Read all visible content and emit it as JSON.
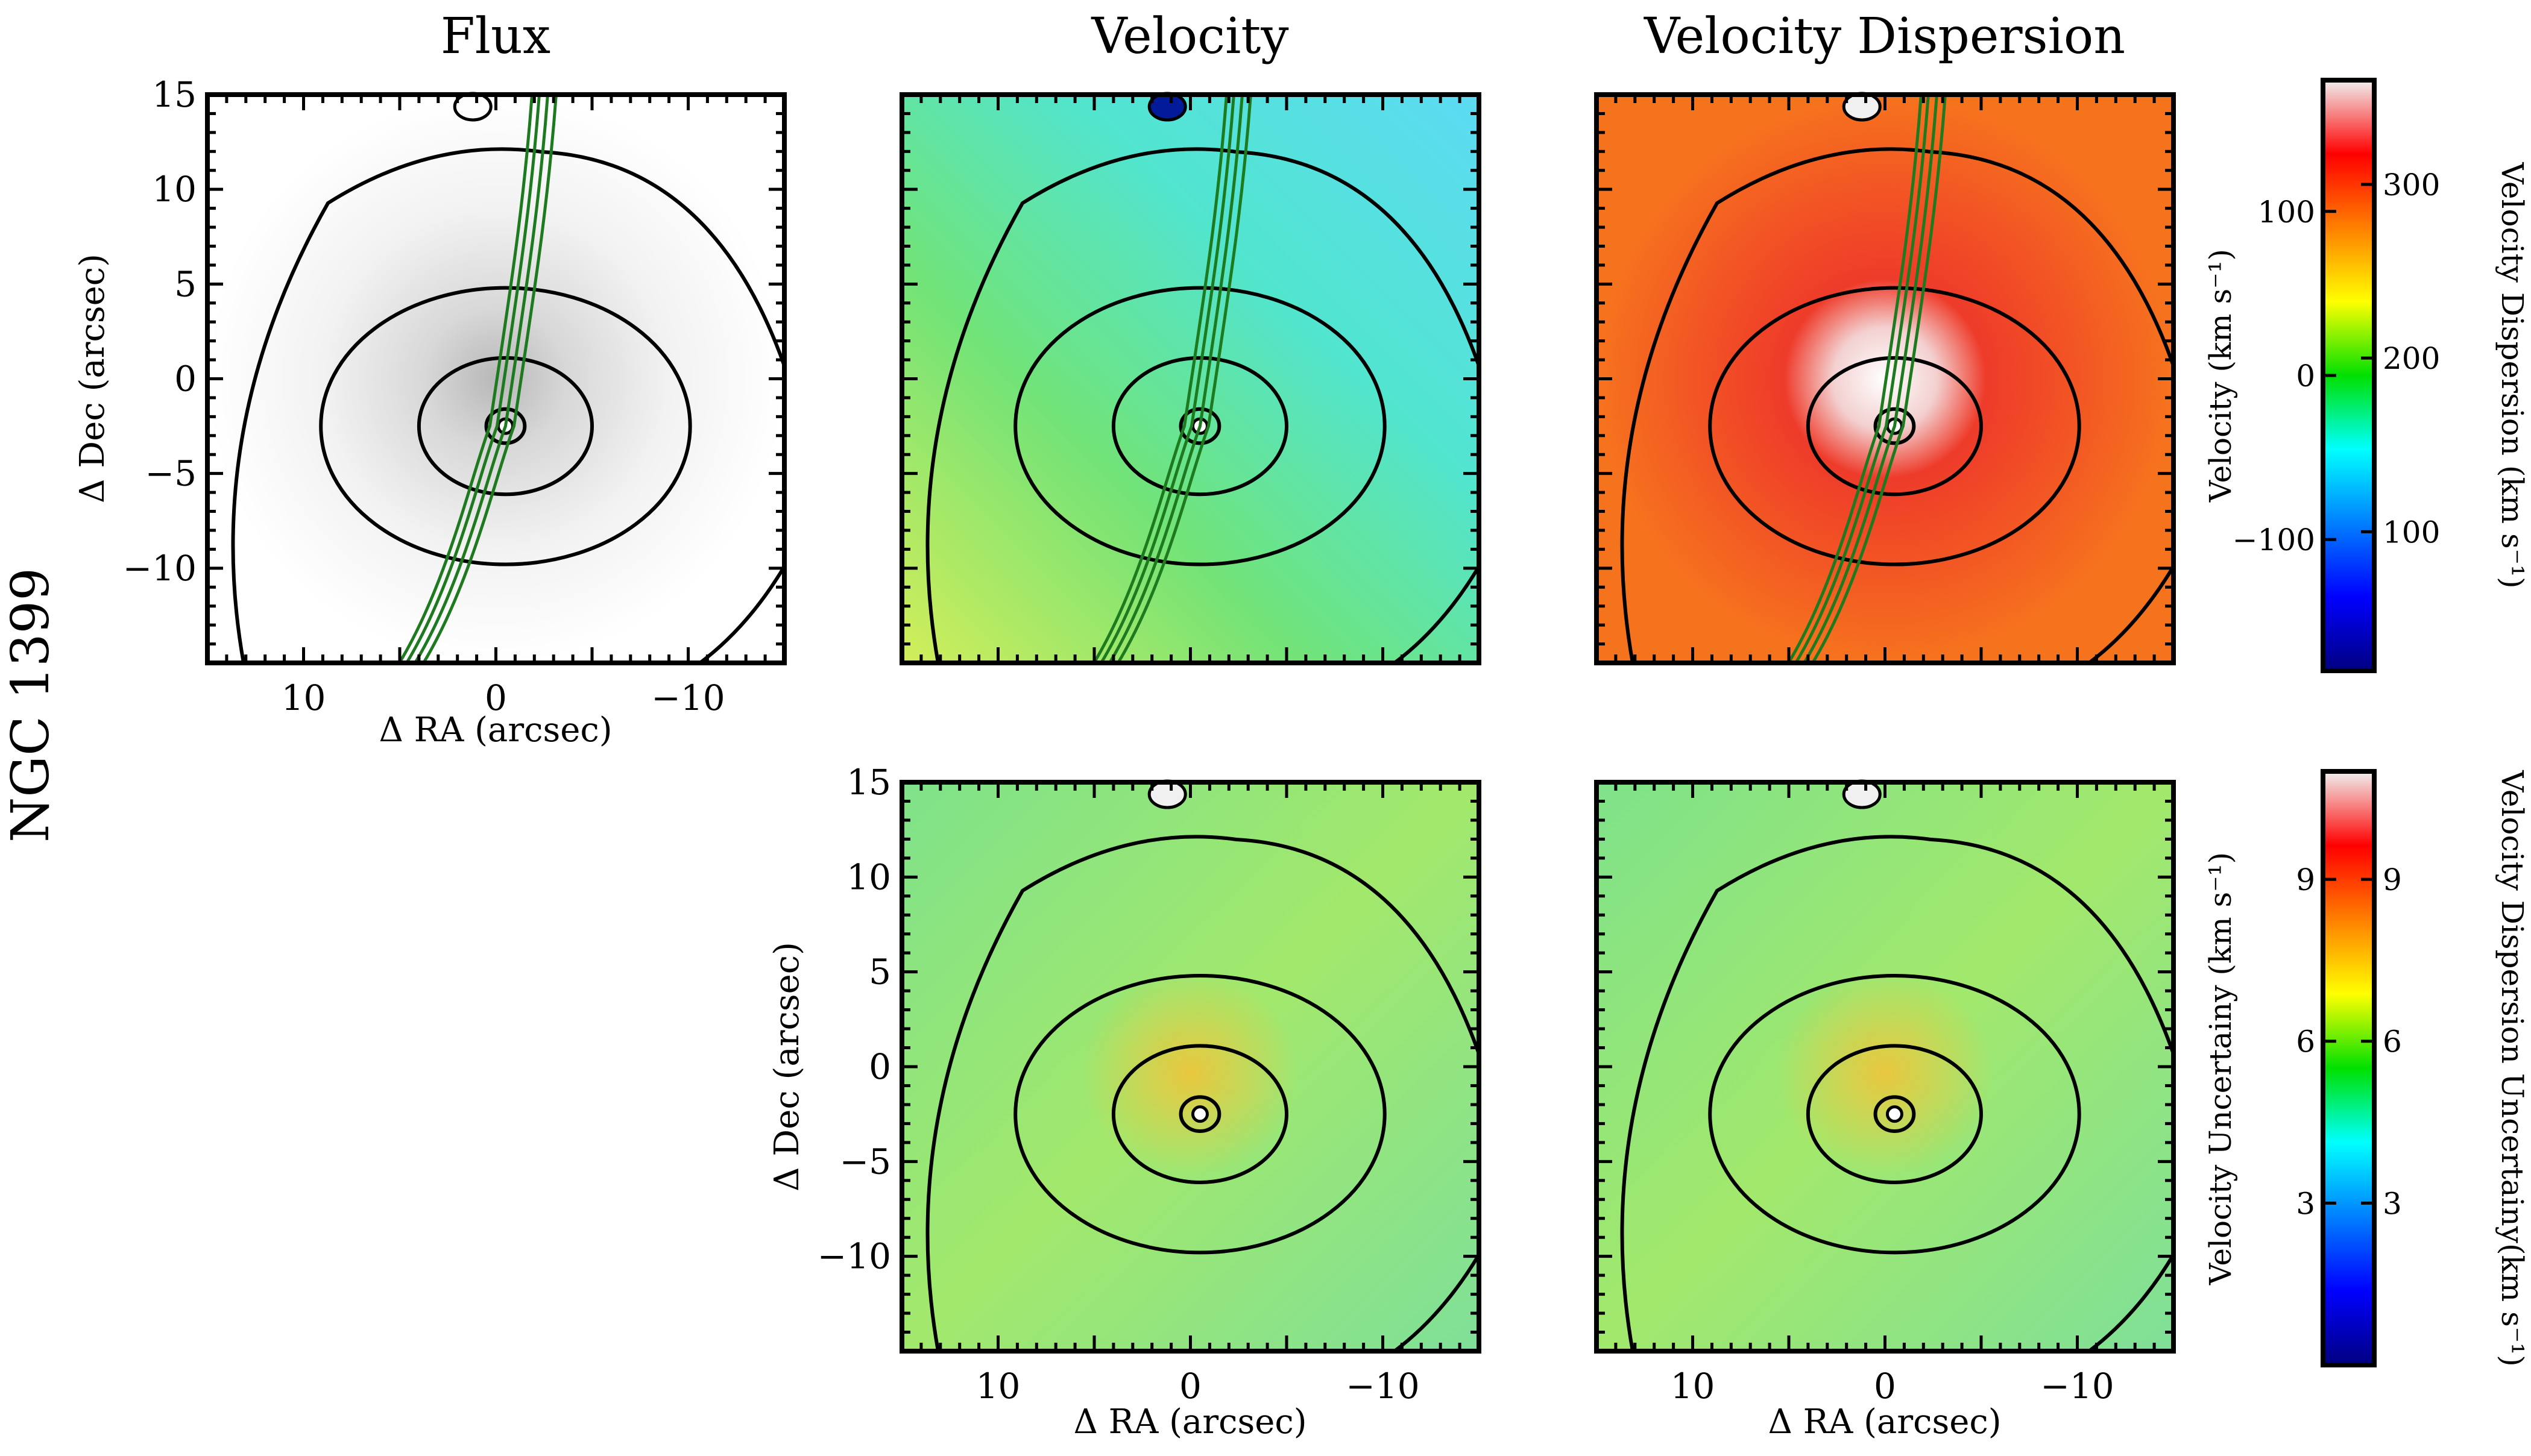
{
  "figure": {
    "object_label": "NGC 1399",
    "col_titles": [
      "Flux",
      "Velocity",
      "Velocity Dispersion"
    ]
  },
  "chart_data": [
    {
      "id": "flux",
      "type": "heatmap",
      "title": "Flux",
      "xlabel": "Δ RA (arcsec)",
      "ylabel": "Δ Dec (arcsec)",
      "xlim": [
        15,
        -15
      ],
      "ylim": [
        -15,
        15
      ],
      "xticks": [
        "10",
        "0",
        "−10"
      ],
      "yticks": [
        "15",
        "10",
        "5",
        "0",
        "−5",
        "−10"
      ],
      "center": [
        -0.5,
        -2.5
      ],
      "colormap": "grey",
      "contours": "black isophotes + green radio jet"
    },
    {
      "id": "velocity",
      "type": "heatmap",
      "title": "Velocity",
      "xlim": [
        15,
        -15
      ],
      "ylim": [
        -15,
        15
      ],
      "center": [
        -0.5,
        -2.5
      ],
      "range": [
        -180,
        180
      ],
      "colormap": "jet",
      "gradient": "yellow-green east/south, cyan north/west"
    },
    {
      "id": "dispersion",
      "type": "heatmap",
      "title": "Velocity Dispersion",
      "xlim": [
        15,
        -15
      ],
      "ylim": [
        -15,
        15
      ],
      "center": [
        -0.5,
        -2.5
      ],
      "range": [
        20,
        360
      ],
      "colormap": "jet",
      "gradient": "white-red centre falling to orange outskirts"
    },
    {
      "id": "vel_unc",
      "type": "heatmap",
      "xlabel": "Δ RA (arcsec)",
      "ylabel": "Δ Dec (arcsec)",
      "xlim": [
        15,
        -15
      ],
      "ylim": [
        -15,
        15
      ],
      "xticks": [
        "10",
        "0",
        "−10"
      ],
      "yticks": [
        "15",
        "10",
        "5",
        "0",
        "−5",
        "−10"
      ],
      "center": [
        -0.5,
        -2.5
      ],
      "range": [
        0,
        11
      ],
      "colormap": "jet"
    },
    {
      "id": "disp_unc",
      "type": "heatmap",
      "xlabel": "Δ RA (arcsec)",
      "xlim": [
        15,
        -15
      ],
      "ylim": [
        -15,
        15
      ],
      "xticks": [
        "10",
        "0",
        "−10"
      ],
      "center": [
        -0.5,
        -2.5
      ],
      "range": [
        0,
        11
      ],
      "colormap": "jet"
    }
  ],
  "colorbars": {
    "top": {
      "left_label": "Velocity (km s⁻¹)",
      "right_label": "Velocity Dispersion (km s⁻¹)",
      "left_ticks": [
        {
          "v": 100,
          "t": "100"
        },
        {
          "v": 0,
          "t": "0"
        },
        {
          "v": -100,
          "t": "−100"
        }
      ],
      "left_range": [
        -180,
        180
      ],
      "right_ticks": [
        {
          "v": 300,
          "t": "300"
        },
        {
          "v": 200,
          "t": "200"
        },
        {
          "v": 100,
          "t": "100"
        }
      ],
      "right_range": [
        20,
        360
      ]
    },
    "bottom": {
      "left_label": "Velocity Uncertainy (km s⁻¹)",
      "right_label": "Velocity Dispersion Uncertainy(km s⁻¹)",
      "left_ticks": [
        {
          "v": 9,
          "t": "9"
        },
        {
          "v": 6,
          "t": "6"
        },
        {
          "v": 3,
          "t": "3"
        }
      ],
      "left_range": [
        0,
        11
      ],
      "right_ticks": [
        {
          "v": 9,
          "t": "9"
        },
        {
          "v": 6,
          "t": "6"
        },
        {
          "v": 3,
          "t": "3"
        }
      ],
      "right_range": [
        0,
        11
      ]
    }
  }
}
